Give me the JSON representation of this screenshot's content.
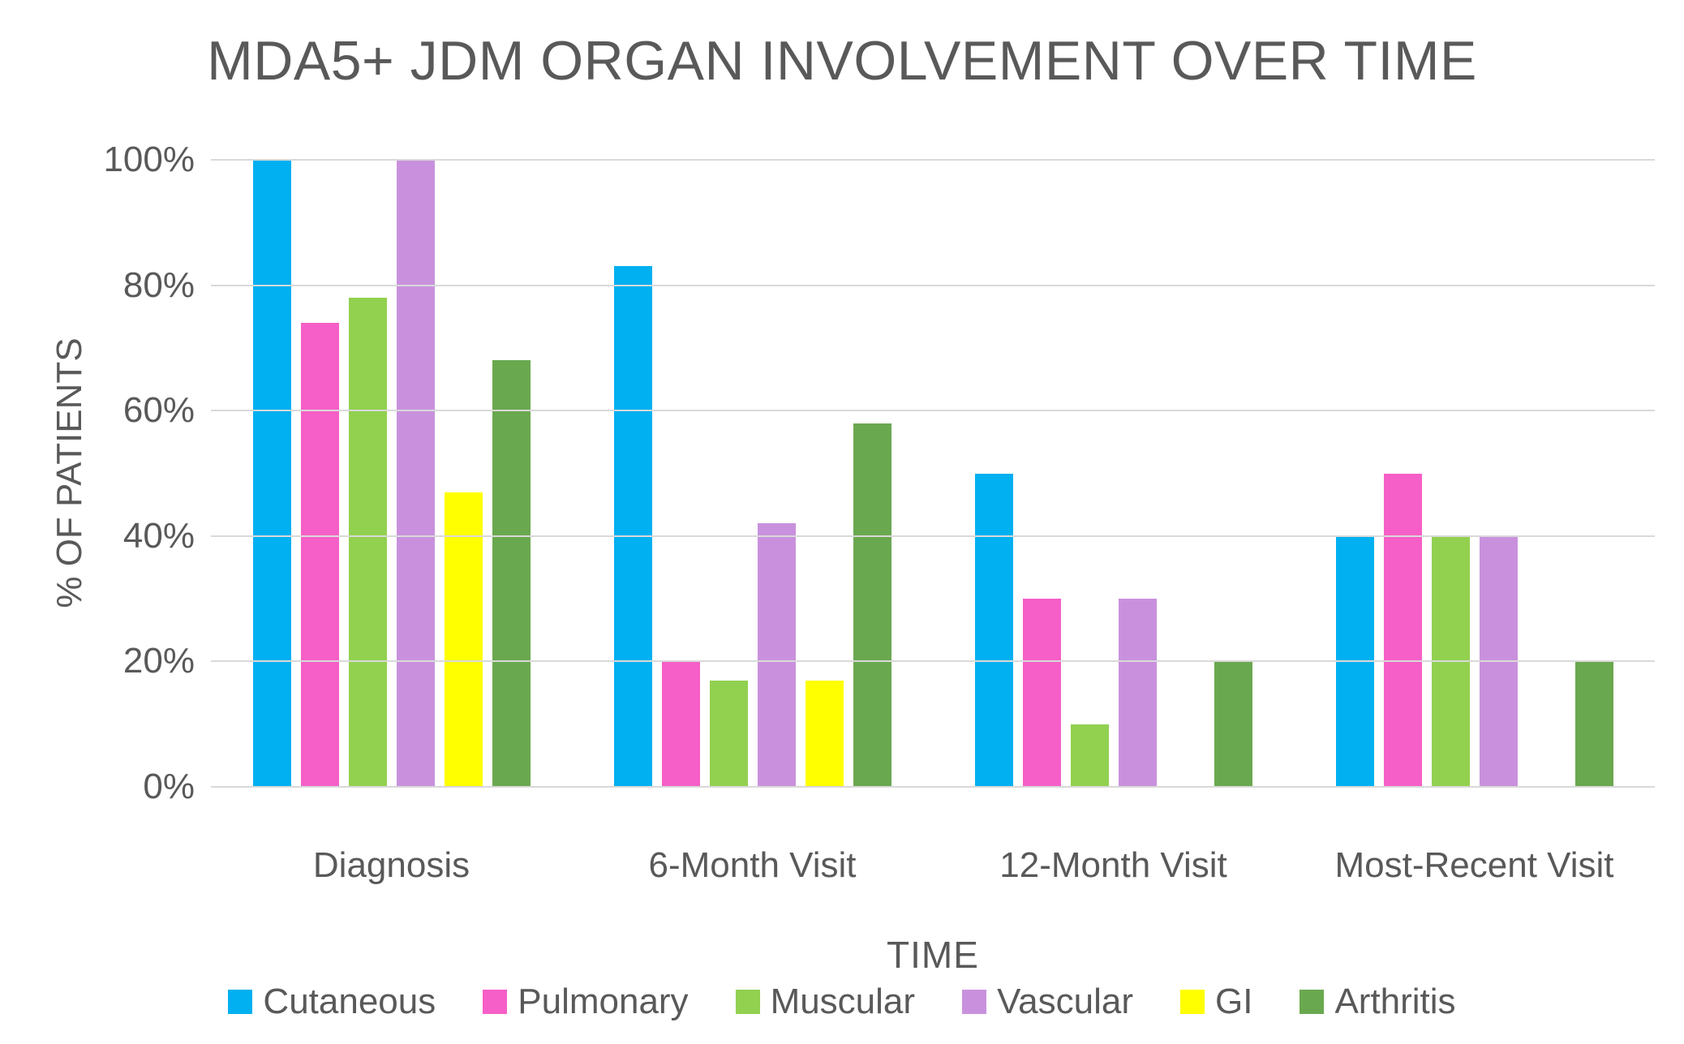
{
  "title": "MDA5+ JDM ORGAN INVOLVEMENT OVER TIME",
  "colors": {
    "background": "#FFFFFF",
    "text": "#595959",
    "grid": "#D9D9D9",
    "cutaneous": "#00B0F0",
    "pulmonary": "#F65FC7",
    "muscular": "#92D050",
    "vascular": "#C991DD",
    "gi": "#FFFF00",
    "arthritis": "#6AA84F"
  },
  "chart_data": {
    "type": "bar",
    "title": "MDA5+ JDM ORGAN INVOLVEMENT OVER TIME",
    "categories": [
      "Diagnosis",
      "6-Month Visit",
      "12-Month Visit",
      "Most-Recent Visit"
    ],
    "series": [
      {
        "name": "Cutaneous",
        "color": "#00B0F0",
        "values": [
          100,
          83,
          50,
          40
        ]
      },
      {
        "name": "Pulmonary",
        "color": "#F65FC7",
        "values": [
          74,
          20,
          30,
          50
        ]
      },
      {
        "name": "Muscular",
        "color": "#92D050",
        "values": [
          78,
          17,
          10,
          40
        ]
      },
      {
        "name": "Vascular",
        "color": "#C991DD",
        "values": [
          100,
          42,
          30,
          40
        ]
      },
      {
        "name": "GI",
        "color": "#FFFF00",
        "values": [
          47,
          17,
          0,
          0
        ]
      },
      {
        "name": "Arthritis",
        "color": "#6AA84F",
        "values": [
          68,
          58,
          20,
          20
        ]
      }
    ],
    "xlabel": "TIME",
    "ylabel": "% OF PATIENTS",
    "ylim": [
      0,
      100
    ],
    "y_tick_step": 20,
    "y_ticks": [
      "0%",
      "20%",
      "40%",
      "60%",
      "80%",
      "100%"
    ],
    "grid": true,
    "legend_position": "bottom"
  }
}
